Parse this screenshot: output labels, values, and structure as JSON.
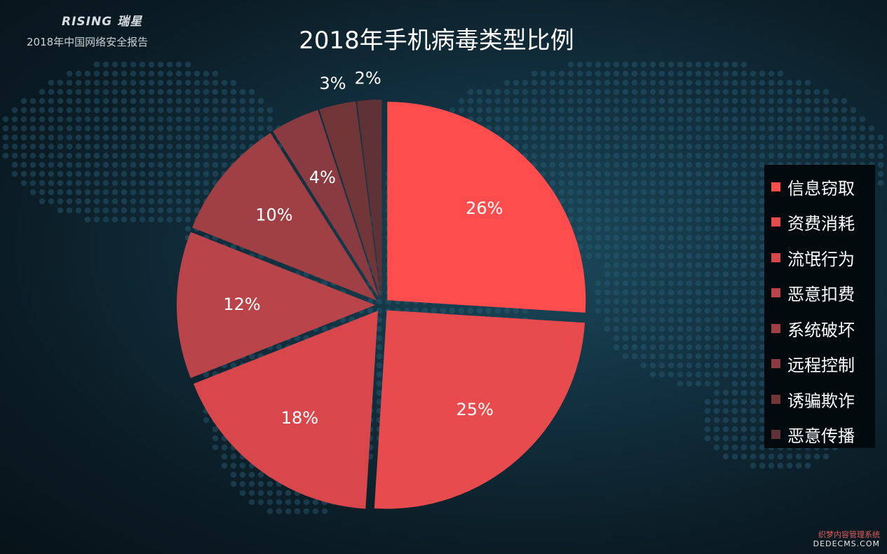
{
  "header": {
    "brand": "RISING 瑞星",
    "subtitle": "2018年中国网络安全报告"
  },
  "chart_data": {
    "type": "pie",
    "title": "2018年手机病毒类型比例",
    "categories": [
      "信息窃取",
      "资费消耗",
      "流氓行为",
      "恶意扣费",
      "系统破坏",
      "远程控制",
      "诱骗欺诈",
      "恶意传播"
    ],
    "values": [
      26,
      25,
      18,
      12,
      10,
      4,
      3,
      2
    ],
    "labels": [
      "26%",
      "25%",
      "18%",
      "12%",
      "10%",
      "4%",
      "3%",
      "2%"
    ],
    "colors": [
      "#ff4d4d",
      "#e84b4d",
      "#d8474c",
      "#b94449",
      "#a04045",
      "#8a3b41",
      "#733638",
      "#5e3236"
    ],
    "legend_position": "right",
    "exploded": true
  },
  "watermark": {
    "line1": "织梦内容管理系统",
    "line2": "DEDECMS.COM"
  }
}
